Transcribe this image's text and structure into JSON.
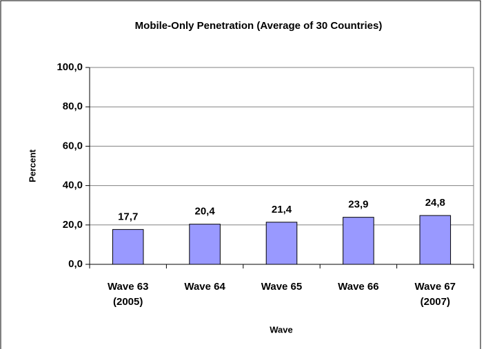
{
  "chart_data": {
    "type": "bar",
    "title": "Mobile-Only Penetration (Average of 30 Countries)",
    "x_label": "Wave",
    "y_label": "Percent",
    "categories": [
      "Wave 63 (2005)",
      "Wave 64",
      "Wave 65",
      "Wave 66",
      "Wave 67 (2007)"
    ],
    "values": [
      17.7,
      20.4,
      21.4,
      23.9,
      24.8
    ],
    "value_labels": [
      "17,7",
      "20,4",
      "21,4",
      "23,9",
      "24,8"
    ],
    "color": "#9999ff",
    "ylim": [
      0,
      100
    ],
    "yticks": [
      {
        "value": 0,
        "label": "0,0"
      },
      {
        "value": 20,
        "label": "20,0"
      },
      {
        "value": 40,
        "label": "40,0"
      },
      {
        "value": 60,
        "label": "60,0"
      },
      {
        "value": 80,
        "label": "80,0"
      },
      {
        "value": 100,
        "label": "100,0"
      }
    ],
    "grid": true
  }
}
